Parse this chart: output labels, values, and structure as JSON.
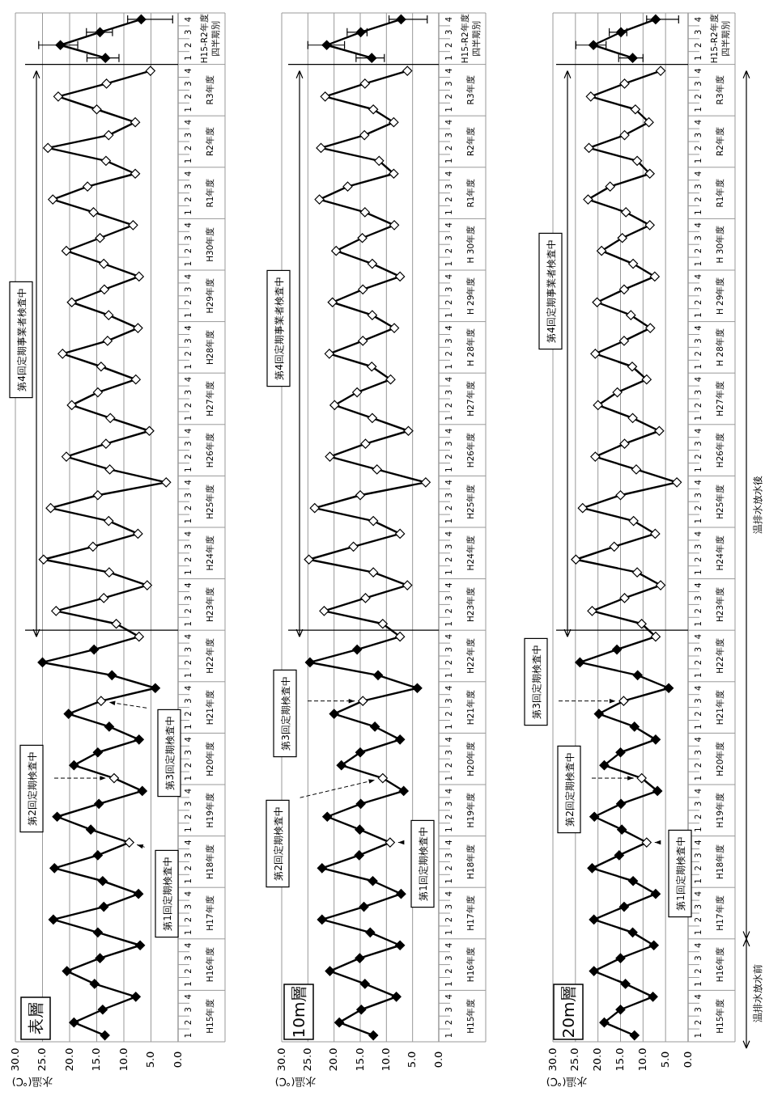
{
  "chart_data": [
    {
      "type": "line",
      "orientation": "horizontal",
      "title": "表層",
      "xlabel": "水温(℃)",
      "grid": "x",
      "xlim": [
        30,
        0
      ],
      "xticks": [
        {
          "value": 30,
          "label": "30.0"
        },
        {
          "value": 25,
          "label": "25.0"
        },
        {
          "value": 20,
          "label": "20.0"
        },
        {
          "value": 15,
          "label": "15.0"
        },
        {
          "value": 10,
          "label": "10.0"
        },
        {
          "value": 5,
          "label": "5.0"
        },
        {
          "value": 0,
          "label": "0.0"
        }
      ],
      "categories": [
        "4",
        "3",
        "2",
        "1",
        "4",
        "3",
        "2",
        "1",
        "4",
        "3",
        "2",
        "1",
        "4",
        "3",
        "2",
        "1",
        "4",
        "3",
        "2",
        "1",
        "4",
        "3",
        "2",
        "1",
        "4",
        "3",
        "2",
        "1",
        "4",
        "3",
        "2",
        "1",
        "4",
        "3",
        "2",
        "1",
        "4",
        "3",
        "2",
        "1",
        "4",
        "3",
        "2",
        "1",
        "4",
        "3",
        "2",
        "1",
        "4",
        "3",
        "2",
        "1",
        "4",
        "3",
        "2",
        "1",
        "4",
        "3",
        "2",
        "1",
        "4",
        "3",
        "2",
        "1",
        "4",
        "3",
        "2",
        "1",
        "4",
        "3",
        "2",
        "1",
        "4",
        "3",
        "2",
        "1",
        "4",
        "3",
        "2",
        "1"
      ],
      "annotations": [
        "H15-R2年度四半期別",
        "R3年度",
        "R2年度",
        "R1年度",
        "H30年度",
        "H29年度",
        "H28年度",
        "H27年度",
        "H26年度",
        "H25年度",
        "H24年度",
        "H23年度",
        "H22年度",
        "H21年度",
        "H20年度",
        "H19年度",
        "H18年度",
        "H17年度",
        "H16年度",
        "H15年度",
        "第1回定期検査中",
        "第2回定期検査中",
        "第3回定期検査中",
        "第4回定期事業者検査中"
      ],
      "series": [
        {
          "marker": "diamond",
          "color": "#000000",
          "values": [
            null,
            null,
            null,
            null,
            5.1,
            13.2,
            22.1,
            15.0,
            7.9,
            12.8,
            24.0,
            13.3,
            7.9,
            16.7,
            23.1,
            15.6,
            8.3,
            14.4,
            20.6,
            13.7,
            7.2,
            13.6,
            19.6,
            12.8,
            7.4,
            13.0,
            21.3,
            14.2,
            7.8,
            14.8,
            19.6,
            12.5,
            5.3,
            13.3,
            20.6,
            12.6,
            2.2,
            14.8,
            23.5,
            12.8,
            7.4,
            15.7,
            24.8,
            12.7,
            5.7,
            13.7,
            22.5,
            11.4,
            7.2,
            15.5,
            25.0,
            12.2,
            4.2,
            14.2,
            20.2,
            12.7,
            7.2,
            14.8,
            19.2,
            11.8,
            6.6,
            14.6,
            22.3,
            16.1,
            9.0,
            14.8,
            22.8,
            13.9,
            7.3,
            13.7,
            23.0,
            14.8,
            7.0,
            14.4,
            20.5,
            15.4,
            7.8,
            13.9,
            19.2,
            13.5
          ],
          "colors": [
            null,
            null,
            null,
            null,
            "#ffffff",
            "#ffffff",
            "#ffffff",
            "#ffffff",
            "#ffffff",
            "#ffffff",
            "#ffffff",
            "#ffffff",
            "#ffffff",
            "#ffffff",
            "#ffffff",
            "#ffffff",
            "#ffffff",
            "#ffffff",
            "#ffffff",
            "#ffffff",
            "#ffffff",
            "#ffffff",
            "#ffffff",
            "#ffffff",
            "#ffffff",
            "#ffffff",
            "#ffffff",
            "#ffffff",
            "#ffffff",
            "#ffffff",
            "#ffffff",
            "#ffffff",
            "#ffffff",
            "#ffffff",
            "#ffffff",
            "#ffffff",
            "#ffffff",
            "#ffffff",
            "#ffffff",
            "#ffffff",
            "#ffffff",
            "#ffffff",
            "#ffffff",
            "#ffffff",
            "#ffffff",
            "#ffffff",
            "#ffffff",
            "#ffffff",
            "#ffffff",
            "#000000",
            "#000000",
            "#000000",
            "#000000",
            "#ffffff",
            "#000000",
            "#000000",
            "#000000",
            "#000000",
            "#000000",
            "#ffffff",
            "#000000",
            "#000000",
            "#000000",
            "#000000",
            "#ffffff",
            "#000000",
            "#000000",
            "#000000",
            "#000000",
            "#000000",
            "#000000",
            "#000000",
            "#000000",
            "#000000",
            "#000000",
            "#000000",
            "#000000",
            "#000000",
            "#000000",
            "#000000"
          ]
        },
        {
          "marker": "diamond",
          "color": "#000000",
          "values": [
            6.8,
            14.4,
            21.7,
            13.4,
            null,
            null,
            null,
            null,
            null,
            null,
            null,
            null,
            null,
            null,
            null,
            null,
            null,
            null,
            null,
            null,
            null,
            null,
            null,
            null,
            null,
            null,
            null,
            null,
            null,
            null,
            null,
            null,
            null,
            null,
            null,
            null,
            null,
            null,
            null,
            null,
            null,
            null,
            null,
            null,
            null,
            null,
            null,
            null,
            null,
            null,
            null,
            null,
            null,
            null,
            null,
            null,
            null,
            null,
            null,
            null,
            null,
            null,
            null,
            null,
            null,
            null,
            null,
            null,
            null,
            null,
            null,
            null,
            null,
            null,
            null,
            null,
            null,
            null,
            null,
            null
          ],
          "errors": [
            [
              1.0,
              9.3
            ],
            [
              12.1,
              16.9
            ],
            [
              18.5,
              25.7
            ],
            [
              10.9,
              16.8
            ],
            null,
            null,
            null,
            null,
            null,
            null,
            null,
            null,
            null,
            null,
            null,
            null,
            null,
            null,
            null,
            null,
            null,
            null,
            null,
            null,
            null,
            null,
            null,
            null,
            null,
            null,
            null,
            null,
            null,
            null,
            null,
            null,
            null,
            null,
            null,
            null,
            null,
            null,
            null,
            null,
            null,
            null,
            null,
            null,
            null,
            null,
            null,
            null,
            null,
            null,
            null,
            null,
            null,
            null,
            null,
            null,
            null,
            null,
            null,
            null,
            null,
            null,
            null,
            null,
            null,
            null,
            null,
            null,
            null,
            null,
            null,
            null,
            null,
            null,
            null,
            null
          ]
        }
      ]
    },
    {
      "type": "line",
      "orientation": "horizontal",
      "title": "10m層",
      "xlabel": "水温(℃)",
      "grid": "x",
      "xlim": [
        30,
        0
      ],
      "xticks": [
        {
          "value": 30,
          "label": "30.0"
        },
        {
          "value": 25,
          "label": "25.0"
        },
        {
          "value": 20,
          "label": "20.0"
        },
        {
          "value": 15,
          "label": "15.0"
        },
        {
          "value": 10,
          "label": "10.0"
        },
        {
          "value": 5,
          "label": "5.0"
        },
        {
          "value": 0,
          "label": "0.0"
        }
      ],
      "categories": [
        "4",
        "3",
        "2",
        "1",
        "4",
        "3",
        "2",
        "1",
        "4",
        "3",
        "2",
        "1",
        "4",
        "3",
        "2",
        "1",
        "4",
        "3",
        "2",
        "1",
        "4",
        "3",
        "2",
        "1",
        "4",
        "3",
        "2",
        "1",
        "4",
        "3",
        "2",
        "1",
        "4",
        "3",
        "2",
        "1",
        "4",
        "3",
        "2",
        "1",
        "4",
        "3",
        "2",
        "1",
        "4",
        "3",
        "2",
        "1",
        "4",
        "3",
        "2",
        "1",
        "4",
        "3",
        "2",
        "1",
        "4",
        "3",
        "2",
        "1",
        "4",
        "3",
        "2",
        "1",
        "4",
        "3",
        "2",
        "1",
        "4",
        "3",
        "2",
        "1",
        "4",
        "3",
        "2",
        "1",
        "4",
        "3",
        "2",
        "1"
      ],
      "annotations": [
        "H15-R2年度四半期別",
        "R3年度",
        "R2年度",
        "R1年度",
        "H 30年度",
        "H 29年度",
        "H 28年度",
        "H27年度",
        "H26年度",
        "H25年度",
        "H24年度",
        "H23年度",
        "H22年度",
        "H21年度",
        "H20年度",
        "H19年度",
        "H18年度",
        "H17年度",
        "H16年度",
        "H15年度",
        "第1回定期検査中",
        "第2回定期検査中",
        "第3回定期検査中",
        "第4回定期事業者検査中"
      ],
      "series": [
        {
          "marker": "diamond",
          "color": "#000000",
          "values": [
            null,
            null,
            null,
            null,
            6.0,
            14.1,
            21.7,
            12.5,
            8.6,
            14.2,
            22.5,
            11.4,
            8.6,
            17.4,
            22.8,
            14.1,
            8.5,
            14.6,
            19.6,
            12.7,
            7.4,
            14.5,
            20.3,
            12.7,
            8.5,
            14.5,
            20.9,
            12.8,
            9.2,
            15.6,
            19.9,
            12.7,
            5.8,
            14.0,
            20.8,
            11.8,
            2.5,
            15.0,
            23.7,
            12.5,
            7.4,
            16.3,
            24.8,
            12.5,
            6.0,
            14.0,
            21.9,
            10.7,
            7.4,
            15.6,
            24.6,
            11.6,
            4.1,
            14.5,
            20.0,
            12.2,
            7.4,
            15.0,
            18.6,
            10.7,
            6.7,
            14.9,
            21.3,
            15.1,
            9.3,
            15.2,
            22.3,
            12.6,
            7.2,
            14.3,
            22.3,
            13.1,
            7.4,
            15.1,
            20.8,
            14.1,
            8.1,
            14.8,
            19.0,
            12.5
          ],
          "colors": [
            null,
            null,
            null,
            null,
            "#ffffff",
            "#ffffff",
            "#ffffff",
            "#ffffff",
            "#ffffff",
            "#ffffff",
            "#ffffff",
            "#ffffff",
            "#ffffff",
            "#ffffff",
            "#ffffff",
            "#ffffff",
            "#ffffff",
            "#ffffff",
            "#ffffff",
            "#ffffff",
            "#ffffff",
            "#ffffff",
            "#ffffff",
            "#ffffff",
            "#ffffff",
            "#ffffff",
            "#ffffff",
            "#ffffff",
            "#ffffff",
            "#ffffff",
            "#ffffff",
            "#ffffff",
            "#ffffff",
            "#ffffff",
            "#ffffff",
            "#ffffff",
            "#ffffff",
            "#ffffff",
            "#ffffff",
            "#ffffff",
            "#ffffff",
            "#ffffff",
            "#ffffff",
            "#ffffff",
            "#ffffff",
            "#ffffff",
            "#ffffff",
            "#ffffff",
            "#ffffff",
            "#000000",
            "#000000",
            "#000000",
            "#000000",
            "#ffffff",
            "#000000",
            "#000000",
            "#000000",
            "#000000",
            "#000000",
            "#ffffff",
            "#000000",
            "#000000",
            "#000000",
            "#000000",
            "#ffffff",
            "#000000",
            "#000000",
            "#000000",
            "#000000",
            "#000000",
            "#000000",
            "#000000",
            "#000000",
            "#000000",
            "#000000",
            "#000000",
            "#000000",
            "#000000",
            "#000000",
            "#000000"
          ]
        },
        {
          "marker": "diamond",
          "color": "#000000",
          "values": [
            7.2,
            14.9,
            21.4,
            12.8,
            null,
            null,
            null,
            null,
            null,
            null,
            null,
            null,
            null,
            null,
            null,
            null,
            null,
            null,
            null,
            null,
            null,
            null,
            null,
            null,
            null,
            null,
            null,
            null,
            null,
            null,
            null,
            null,
            null,
            null,
            null,
            null,
            null,
            null,
            null,
            null,
            null,
            null,
            null,
            null,
            null,
            null,
            null,
            null,
            null,
            null,
            null,
            null,
            null,
            null,
            null,
            null,
            null,
            null,
            null,
            null,
            null,
            null,
            null,
            null,
            null,
            null,
            null,
            null,
            null,
            null,
            null,
            null,
            null,
            null,
            null,
            null,
            null,
            null,
            null,
            null
          ],
          "errors": [
            [
              2.2,
              9.5
            ],
            [
              13.7,
              17.5
            ],
            [
              18.0,
              25.0
            ],
            [
              10.4,
              15.8
            ],
            null,
            null,
            null,
            null,
            null,
            null,
            null,
            null,
            null,
            null,
            null,
            null,
            null,
            null,
            null,
            null,
            null,
            null,
            null,
            null,
            null,
            null,
            null,
            null,
            null,
            null,
            null,
            null,
            null,
            null,
            null,
            null,
            null,
            null,
            null,
            null,
            null,
            null,
            null,
            null,
            null,
            null,
            null,
            null,
            null,
            null,
            null,
            null,
            null,
            null,
            null,
            null,
            null,
            null,
            null,
            null,
            null,
            null,
            null,
            null,
            null,
            null,
            null,
            null,
            null,
            null,
            null,
            null,
            null,
            null,
            null,
            null,
            null,
            null,
            null,
            null
          ]
        }
      ]
    },
    {
      "type": "line",
      "orientation": "horizontal",
      "title": "20m層",
      "xlabel": "水温(℃)",
      "grid": "x",
      "xlim": [
        30,
        0
      ],
      "xticks": [
        {
          "value": 30,
          "label": "30.0"
        },
        {
          "value": 25,
          "label": "25.0"
        },
        {
          "value": 20,
          "label": "20.0"
        },
        {
          "value": 15,
          "label": "15.0"
        },
        {
          "value": 10,
          "label": "10.0"
        },
        {
          "value": 5,
          "label": "5.0"
        },
        {
          "value": 0,
          "label": "0.0"
        }
      ],
      "categories": [
        "4",
        "3",
        "2",
        "1",
        "4",
        "3",
        "2",
        "1",
        "4",
        "3",
        "2",
        "1",
        "4",
        "3",
        "2",
        "1",
        "4",
        "3",
        "2",
        "1",
        "4",
        "3",
        "2",
        "1",
        "4",
        "3",
        "2",
        "1",
        "4",
        "3",
        "2",
        "1",
        "4",
        "3",
        "2",
        "1",
        "4",
        "3",
        "2",
        "1",
        "4",
        "3",
        "2",
        "1",
        "4",
        "3",
        "2",
        "1",
        "4",
        "3",
        "2",
        "1",
        "4",
        "3",
        "2",
        "1",
        "4",
        "3",
        "2",
        "1",
        "4",
        "3",
        "2",
        "1",
        "4",
        "3",
        "2",
        "1",
        "4",
        "3",
        "2",
        "1",
        "4",
        "3",
        "2",
        "1",
        "4",
        "3",
        "2",
        "1"
      ],
      "annotations": [
        "H15-R2年度四半期別",
        "R3年度",
        "R2年度",
        "R1年度",
        "H 30年度",
        "H 29年度",
        "H 28年度",
        "H27年度",
        "H26年度",
        "H25年度",
        "H24年度",
        "H23年度",
        "H22年度",
        "H21年度",
        "H20年度",
        "H19年度",
        "H18年度",
        "H17年度",
        "H16年度",
        "H15年度",
        "第1回定期検査中",
        "第2回定期検査中",
        "第3回定期検査中",
        "第4回定期事業者検査中",
        "温排水放水前",
        "温排水放水後"
      ],
      "series": [
        {
          "marker": "diamond",
          "color": "#000000",
          "values": [
            null,
            null,
            null,
            null,
            6.1,
            14.1,
            21.6,
            11.7,
            8.7,
            14.1,
            22.0,
            11.3,
            8.5,
            17.3,
            22.2,
            13.8,
            8.5,
            14.6,
            19.2,
            12.2,
            7.4,
            14.2,
            20.2,
            12.7,
            8.4,
            14.2,
            20.6,
            12.4,
            9.2,
            15.7,
            20.0,
            12.3,
            6.4,
            14.1,
            20.6,
            11.5,
            2.5,
            15.0,
            23.4,
            12.1,
            7.3,
            16.4,
            24.9,
            11.3,
            6.1,
            14.1,
            21.3,
            10.3,
            7.2,
            15.8,
            24.0,
            11.2,
            4.3,
            14.3,
            19.8,
            11.9,
            7.2,
            15.0,
            18.6,
            10.3,
            6.8,
            14.9,
            20.8,
            14.7,
            9.2,
            15.3,
            21.3,
            12.2,
            7.2,
            14.2,
            20.9,
            12.3,
            7.6,
            15.0,
            20.9,
            13.9,
            7.8,
            15.0,
            18.6,
            11.9
          ],
          "colors": [
            null,
            null,
            null,
            null,
            "#ffffff",
            "#ffffff",
            "#ffffff",
            "#ffffff",
            "#ffffff",
            "#ffffff",
            "#ffffff",
            "#ffffff",
            "#ffffff",
            "#ffffff",
            "#ffffff",
            "#ffffff",
            "#ffffff",
            "#ffffff",
            "#ffffff",
            "#ffffff",
            "#ffffff",
            "#ffffff",
            "#ffffff",
            "#ffffff",
            "#ffffff",
            "#ffffff",
            "#ffffff",
            "#ffffff",
            "#ffffff",
            "#ffffff",
            "#ffffff",
            "#ffffff",
            "#ffffff",
            "#ffffff",
            "#ffffff",
            "#ffffff",
            "#ffffff",
            "#ffffff",
            "#ffffff",
            "#ffffff",
            "#ffffff",
            "#ffffff",
            "#ffffff",
            "#ffffff",
            "#ffffff",
            "#ffffff",
            "#ffffff",
            "#ffffff",
            "#ffffff",
            "#000000",
            "#000000",
            "#000000",
            "#000000",
            "#ffffff",
            "#000000",
            "#000000",
            "#000000",
            "#000000",
            "#000000",
            "#ffffff",
            "#000000",
            "#000000",
            "#000000",
            "#000000",
            "#ffffff",
            "#000000",
            "#000000",
            "#000000",
            "#000000",
            "#000000",
            "#000000",
            "#000000",
            "#000000",
            "#000000",
            "#000000",
            "#000000",
            "#000000",
            "#000000",
            "#000000",
            "#000000"
          ]
        },
        {
          "marker": "diamond",
          "color": "#000000",
          "values": [
            7.2,
            14.9,
            21.0,
            12.3,
            null,
            null,
            null,
            null,
            null,
            null,
            null,
            null,
            null,
            null,
            null,
            null,
            null,
            null,
            null,
            null,
            null,
            null,
            null,
            null,
            null,
            null,
            null,
            null,
            null,
            null,
            null,
            null,
            null,
            null,
            null,
            null,
            null,
            null,
            null,
            null,
            null,
            null,
            null,
            null,
            null,
            null,
            null,
            null,
            null,
            null,
            null,
            null,
            null,
            null,
            null,
            null,
            null,
            null,
            null,
            null,
            null,
            null,
            null,
            null,
            null,
            null,
            null,
            null,
            null,
            null,
            null,
            null,
            null,
            null,
            null,
            null,
            null,
            null,
            null,
            null
          ],
          "errors": [
            [
              2.1,
              9.2
            ],
            [
              13.6,
              17.5
            ],
            [
              18.2,
              24.9
            ],
            [
              10.0,
              15.4
            ],
            null,
            null,
            null,
            null,
            null,
            null,
            null,
            null,
            null,
            null,
            null,
            null,
            null,
            null,
            null,
            null,
            null,
            null,
            null,
            null,
            null,
            null,
            null,
            null,
            null,
            null,
            null,
            null,
            null,
            null,
            null,
            null,
            null,
            null,
            null,
            null,
            null,
            null,
            null,
            null,
            null,
            null,
            null,
            null,
            null,
            null,
            null,
            null,
            null,
            null,
            null,
            null,
            null,
            null,
            null,
            null,
            null,
            null,
            null,
            null,
            null,
            null,
            null,
            null,
            null,
            null,
            null,
            null,
            null,
            null,
            null,
            null,
            null,
            null,
            null,
            null
          ]
        }
      ]
    }
  ]
}
